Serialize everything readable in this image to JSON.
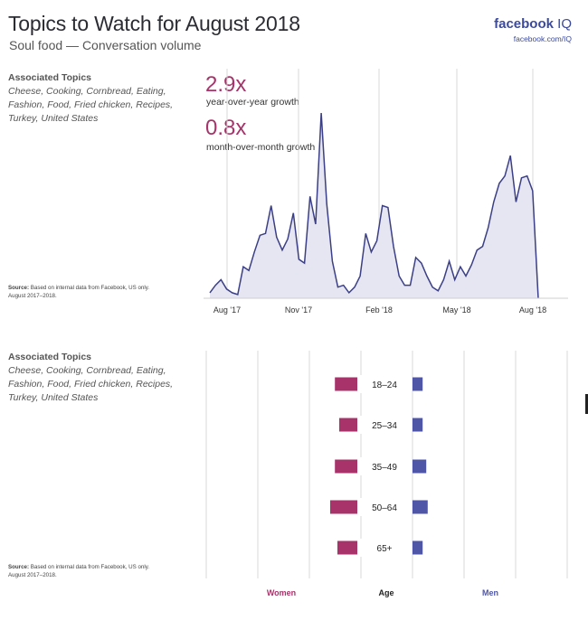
{
  "header": {
    "title": "Topics to Watch for August 2018",
    "subtitle": "Soul food — Conversation volume",
    "brand": "facebook",
    "brand_suffix": "IQ",
    "brand_url": "facebook.com/IQ"
  },
  "top_panel": {
    "assoc_heading": "Associated Topics",
    "assoc_topics": "Cheese, Cooking, Cornbread, Eating, Fashion, Food, Fried chicken, Recipes, Turkey, United States",
    "source_label": "Source:",
    "source_text": "Based on internal data from Facebook, US only. August 2017–2018.",
    "stat1_value": "2.9x",
    "stat1_label": "year-over-year growth",
    "stat2_value": "0.8x",
    "stat2_label": "month-over-month growth"
  },
  "bottom_panel": {
    "assoc_heading": "Associated Topics",
    "assoc_topics": "Cheese, Cooking, Cornbread, Eating, Fashion, Food, Fried chicken, Recipes, Turkey, United States",
    "source_label": "Source:",
    "source_text": "Based on internal data from Facebook, US only. August 2017–2018."
  },
  "colors": {
    "line": "#3b3f85",
    "area": "#e6e6f2",
    "women": "#a8336b",
    "men": "#4f56a8",
    "grid": "#d9d9d9"
  },
  "chart_data": [
    {
      "type": "area",
      "xlabel": "",
      "ylabel": "",
      "x_ticks": [
        "Aug '17",
        "Nov '17",
        "Feb '18",
        "May '18",
        "Aug '18"
      ],
      "ylim": [
        0,
        100
      ],
      "values": [
        3,
        7,
        10,
        5,
        3,
        2,
        17,
        15,
        25,
        34,
        35,
        50,
        33,
        26,
        32,
        46,
        21,
        19,
        55,
        40,
        100,
        51,
        20,
        6,
        7,
        3,
        6,
        12,
        35,
        25,
        31,
        50,
        49,
        28,
        12,
        7,
        7,
        22,
        19,
        12,
        6,
        4,
        10,
        20,
        10,
        17,
        12,
        18,
        26,
        28,
        38,
        52,
        62,
        66,
        77,
        52,
        65,
        66,
        58,
        0
      ],
      "grid": "vertical at ticks",
      "legend": "none"
    },
    {
      "type": "bar",
      "orientation": "horizontal",
      "categories": [
        "18–24",
        "25–34",
        "35–49",
        "50–64",
        "65+"
      ],
      "category_label": "Age",
      "series": [
        {
          "name": "Women",
          "values": [
            0.62,
            0.5,
            0.62,
            0.75,
            0.55
          ]
        },
        {
          "name": "Men",
          "values": [
            0.28,
            0.28,
            0.38,
            0.42,
            0.28
          ]
        }
      ],
      "xlim": [
        0,
        1
      ],
      "grid": "vertical",
      "legend": "bottom"
    }
  ]
}
